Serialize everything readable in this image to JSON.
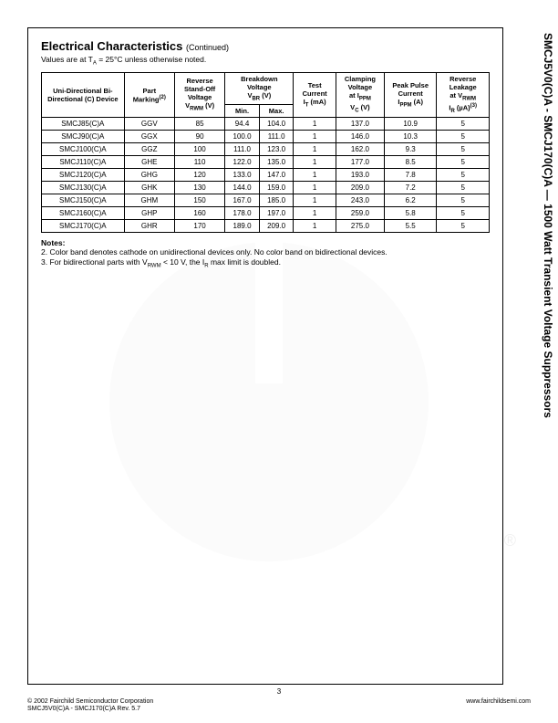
{
  "vertical_title": "SMCJ5V0(C)A - SMCJ170(C)A — 1500 Watt Transient Voltage Suppressors",
  "section": {
    "title": "Electrical Characteristics",
    "continued": "(Continued)",
    "values_note_prefix": "Values are at T",
    "values_note_sub": "A",
    "values_note_suffix": " = 25°C unless otherwise noted."
  },
  "table": {
    "headers": {
      "device": "Uni-Directional Bi-Directional (C) Device",
      "part_marking_label": "Part Marking",
      "part_marking_sup": "(2)",
      "vrwm_l1": "Reverse Stand-Off Voltage",
      "vrwm_l2": "V",
      "vrwm_sub": "RWM",
      "vrwm_unit": " (V)",
      "vbr_l1": "Breakdown Voltage",
      "vbr_l2": "V",
      "vbr_sub": "BR",
      "vbr_unit": " (V)",
      "min": "Min.",
      "max": "Max.",
      "it_l1": "Test Current",
      "it_l2": "I",
      "it_sub": "T",
      "it_unit": " (mA)",
      "vc_l1": "Clamping Voltage",
      "vc_l2": "at I",
      "vc_sub1": "PPM",
      "vc_l3": "V",
      "vc_sub2": "C",
      "vc_unit": " (V)",
      "ippm_l1": "Peak Pulse Current",
      "ippm_l2": "I",
      "ippm_sub": "PPM",
      "ippm_unit": " (A)",
      "ir_l1": "Reverse Leakage",
      "ir_l2": "at V",
      "ir_sub1": "RWM",
      "ir_l3": "I",
      "ir_sub2": "R",
      "ir_unit": " (µA)",
      "ir_sup": "(3)"
    },
    "rows": [
      {
        "device": "SMCJ85(C)A",
        "part": "GGV",
        "vrwm": "85",
        "min": "94.4",
        "max": "104.0",
        "it": "1",
        "vc": "137.0",
        "ippm": "10.9",
        "ir": "5"
      },
      {
        "device": "SMCJ90(C)A",
        "part": "GGX",
        "vrwm": "90",
        "min": "100.0",
        "max": "111.0",
        "it": "1",
        "vc": "146.0",
        "ippm": "10.3",
        "ir": "5"
      },
      {
        "device": "SMCJ100(C)A",
        "part": "GGZ",
        "vrwm": "100",
        "min": "111.0",
        "max": "123.0",
        "it": "1",
        "vc": "162.0",
        "ippm": "9.3",
        "ir": "5"
      },
      {
        "device": "SMCJ110(C)A",
        "part": "GHE",
        "vrwm": "110",
        "min": "122.0",
        "max": "135.0",
        "it": "1",
        "vc": "177.0",
        "ippm": "8.5",
        "ir": "5"
      },
      {
        "device": "SMCJ120(C)A",
        "part": "GHG",
        "vrwm": "120",
        "min": "133.0",
        "max": "147.0",
        "it": "1",
        "vc": "193.0",
        "ippm": "7.8",
        "ir": "5"
      },
      {
        "device": "SMCJ130(C)A",
        "part": "GHK",
        "vrwm": "130",
        "min": "144.0",
        "max": "159.0",
        "it": "1",
        "vc": "209.0",
        "ippm": "7.2",
        "ir": "5"
      },
      {
        "device": "SMCJ150(C)A",
        "part": "GHM",
        "vrwm": "150",
        "min": "167.0",
        "max": "185.0",
        "it": "1",
        "vc": "243.0",
        "ippm": "6.2",
        "ir": "5"
      },
      {
        "device": "SMCJ160(C)A",
        "part": "GHP",
        "vrwm": "160",
        "min": "178.0",
        "max": "197.0",
        "it": "1",
        "vc": "259.0",
        "ippm": "5.8",
        "ir": "5"
      },
      {
        "device": "SMCJ170(C)A",
        "part": "GHR",
        "vrwm": "170",
        "min": "189.0",
        "max": "209.0",
        "it": "1",
        "vc": "275.0",
        "ippm": "5.5",
        "ir": "5"
      }
    ]
  },
  "notes": {
    "header": "Notes:",
    "n2": "2. Color band denotes cathode on unidirectional devices only. No color band on bidirectional devices.",
    "n3_prefix": "3. For bidirectional parts with V",
    "n3_sub1": "RWM",
    "n3_mid": " < 10 V, the I",
    "n3_sub2": "R",
    "n3_suffix": " max limit is doubled."
  },
  "footer": {
    "copyright": "© 2002 Fairchild Semiconductor Corporation",
    "url": "www.fairchildsemi.com",
    "rev": "SMCJ5V0(C)A - SMCJ170(C)A Rev. 5.7",
    "page": "3"
  },
  "reg_mark": "®"
}
